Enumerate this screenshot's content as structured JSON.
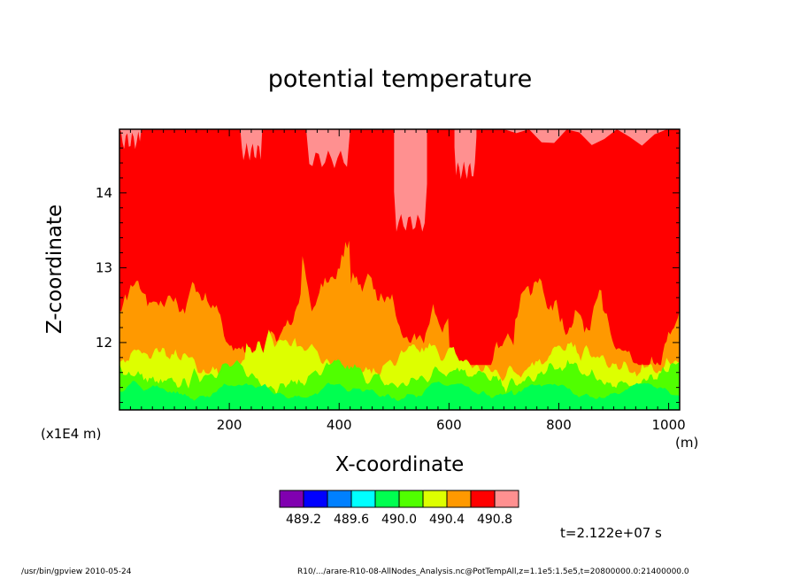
{
  "chart_data": {
    "type": "heatmap",
    "title": "potential temperature",
    "xlabel": "X-coordinate",
    "ylabel": "Z-coordinate",
    "x_unit": "(m)",
    "y_scale_label": "(x1E4 m)",
    "xlim": [
      0,
      1020
    ],
    "ylim": [
      11.1,
      14.85
    ],
    "x_ticks": [
      200,
      400,
      600,
      800,
      1000
    ],
    "x_tick_labels": [
      "200",
      "400",
      "600",
      "800",
      "1000"
    ],
    "y_ticks": [
      12,
      13,
      14
    ],
    "y_tick_labels": [
      "12",
      "13",
      "14"
    ],
    "levels": [
      489.2,
      489.4,
      489.6,
      489.8,
      490.0,
      490.2,
      490.4,
      490.6,
      490.8
    ],
    "colorbar_colors": [
      "#8000b0",
      "#0000ff",
      "#0080ff",
      "#00ffff",
      "#00ff50",
      "#50ff00",
      "#ddff00",
      "#ff9900",
      "#ff0000",
      "#ff9090"
    ],
    "colorbar_labels": [
      "489.2",
      "489.6",
      "490.0",
      "490.4",
      "490.8"
    ],
    "annotation": "t=2.122e+07 s",
    "description_of_field": "green (~490.0-490.2) near bottom 11.1-11.7, yellow/orange transition 11.7-12.4 varying with x, red (490.6-490.8) above, pink (>490.8) patches near top"
  },
  "footer": {
    "left": "/usr/bin/gpview   2010-05-24",
    "right": "R10/.../arare-R10-08-AllNodes_Analysis.nc@PotTempAll,z=1.1e5:1.5e5,t=20800000.0:21400000.0"
  }
}
